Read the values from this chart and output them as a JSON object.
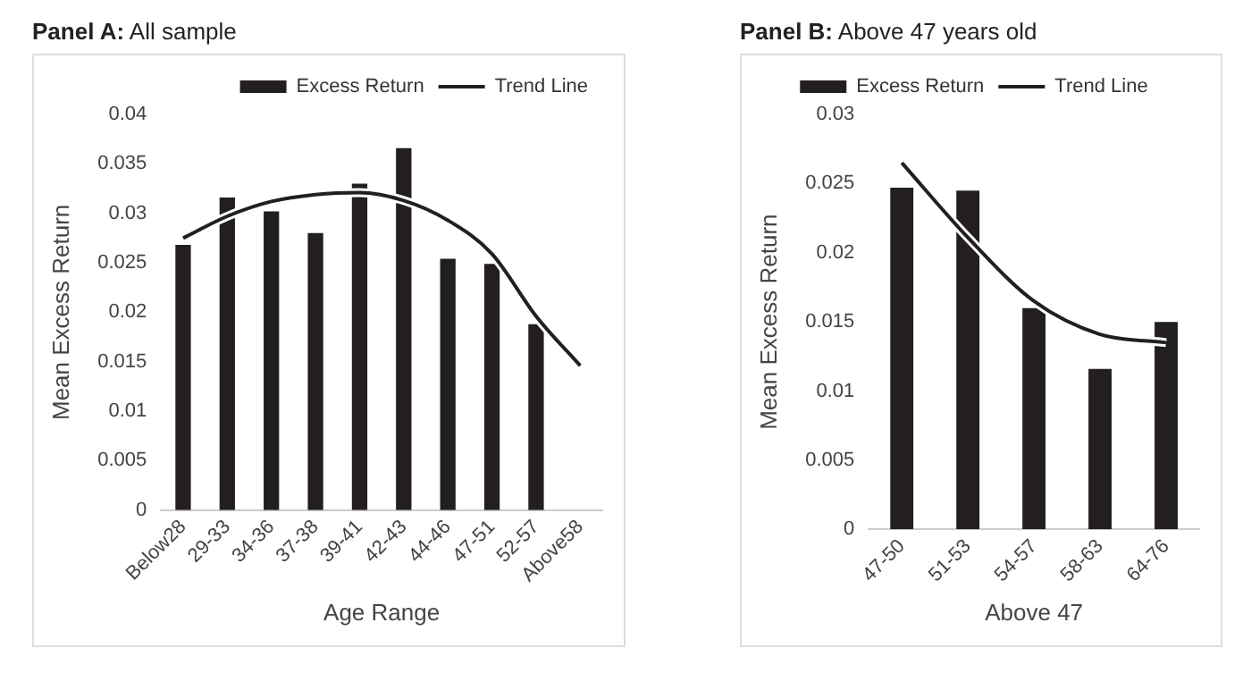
{
  "chart_data": [
    {
      "type": "bar",
      "title": "Panel A: All sample",
      "xlabel": "Age Range",
      "ylabel": "Mean Excess Return",
      "categories": [
        "Below28",
        "29-33",
        "34-36",
        "37-38",
        "39-41",
        "42-43",
        "44-46",
        "47-51",
        "52-57",
        "Above58"
      ],
      "series": [
        {
          "name": "Excess Return",
          "color": "#231f20",
          "values": [
            0.0268,
            0.0316,
            0.0302,
            0.028,
            0.033,
            0.0366,
            0.0254,
            0.0249,
            0.0188,
            null
          ]
        },
        {
          "name": "Trend Line",
          "type": "line",
          "color": "#231f20",
          "values": [
            0.0275,
            0.0297,
            0.0312,
            0.0319,
            0.0321,
            0.0313,
            0.0293,
            0.0259,
            0.0196,
            0.0146
          ]
        }
      ],
      "ylim": [
        0,
        0.04
      ],
      "yticks": [
        0,
        0.005,
        0.01,
        0.015,
        0.02,
        0.025,
        0.03,
        0.035,
        0.04
      ],
      "grid": false,
      "legend": "top right",
      "marker": "none"
    },
    {
      "type": "bar",
      "title": "Panel B: Above 47 years old",
      "xlabel": "Above 47",
      "ylabel": "Mean Excess Return",
      "categories": [
        "47-50",
        "51-53",
        "54-57",
        "58-63",
        "64-76"
      ],
      "series": [
        {
          "name": "Excess Return",
          "color": "#231f20",
          "values": [
            0.0247,
            0.0245,
            0.016,
            0.0116,
            0.015
          ]
        },
        {
          "name": "Trend Line",
          "type": "line",
          "color": "#231f20",
          "values": [
            0.0265,
            0.0211,
            0.0165,
            0.0141,
            0.0135
          ]
        }
      ],
      "ylim": [
        0,
        0.03
      ],
      "yticks": [
        0,
        0.005,
        0.01,
        0.015,
        0.02,
        0.025,
        0.03
      ],
      "grid": false,
      "legend": "top",
      "marker": "none"
    }
  ]
}
